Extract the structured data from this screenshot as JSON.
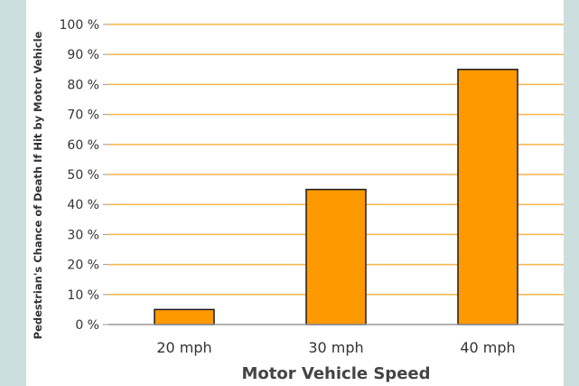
{
  "colors": {
    "background": "#ccdede",
    "plot_background": "#ffffff",
    "gridline": "#f8b44a",
    "bar_fill": "#ff9900",
    "bar_stroke": "#1a1a1a",
    "axis": "#999999"
  },
  "chart_data": {
    "type": "bar",
    "categories": [
      "20 mph",
      "30 mph",
      "40 mph"
    ],
    "values": [
      5,
      45,
      85
    ],
    "xlabel": "Motor Vehicle Speed",
    "ylabel": "Pedestrian's Chance of Death If Hit by Motor Vehicle",
    "ylim": [
      0,
      100
    ],
    "yticks": [
      0,
      10,
      20,
      30,
      40,
      50,
      60,
      70,
      80,
      90,
      100
    ],
    "ytick_labels": [
      "0 %",
      "10 %",
      "20 %",
      "30 %",
      "40 %",
      "50 %",
      "60 %",
      "70 %",
      "80 %",
      "90 %",
      "100 %"
    ],
    "grid": true,
    "legend": "none"
  }
}
